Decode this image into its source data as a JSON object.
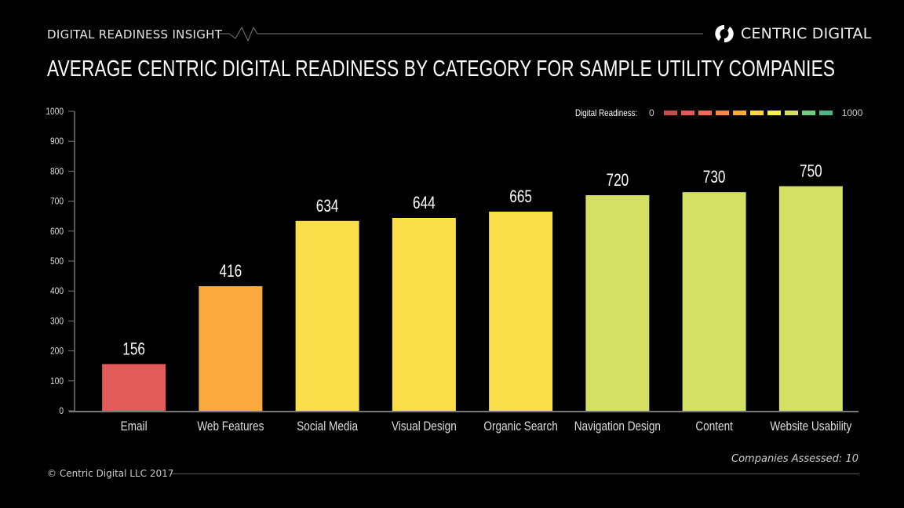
{
  "header": {
    "label": "DIGITAL READINESS INSIGHT",
    "logo_text": "CENTRIC DIGITAL",
    "logo_icon": "circular-arrows-icon"
  },
  "legend": {
    "title": "Digital Readiness:",
    "min": "0",
    "max": "1000",
    "colors": [
      "#c64b4b",
      "#e05858",
      "#ef6b57",
      "#f9874a",
      "#fbaa3e",
      "#fbd844",
      "#f9f04a",
      "#d4df5f",
      "#6fcf78",
      "#4cb583"
    ]
  },
  "footer": {
    "assessed": "Companies Assessed: 10",
    "copyright": "© Centric Digital LLC 2017"
  },
  "chart_data": {
    "type": "bar",
    "title": "AVERAGE CENTRIC DIGITAL READINESS BY CATEGORY FOR SAMPLE UTILITY COMPANIES",
    "xlabel": "",
    "ylabel": "",
    "ylim": [
      0,
      1000
    ],
    "yticks": [
      0,
      100,
      200,
      300,
      400,
      500,
      600,
      700,
      800,
      900,
      1000
    ],
    "grid": false,
    "legend_position": "top-right",
    "categories": [
      "Email",
      "Web Features",
      "Social Media",
      "Visual Design",
      "Organic Search",
      "Navigation Design",
      "Content",
      "Website Usability"
    ],
    "values": [
      156,
      416,
      634,
      644,
      665,
      720,
      730,
      750
    ],
    "colors": [
      "#e35a5a",
      "#fbaa3e",
      "#fbdf4a",
      "#fbdf4a",
      "#fbdf4a",
      "#d4e063",
      "#d4e063",
      "#d4e063"
    ],
    "data_labels": [
      "156",
      "416",
      "634",
      "644",
      "665",
      "720",
      "730",
      "750"
    ]
  }
}
